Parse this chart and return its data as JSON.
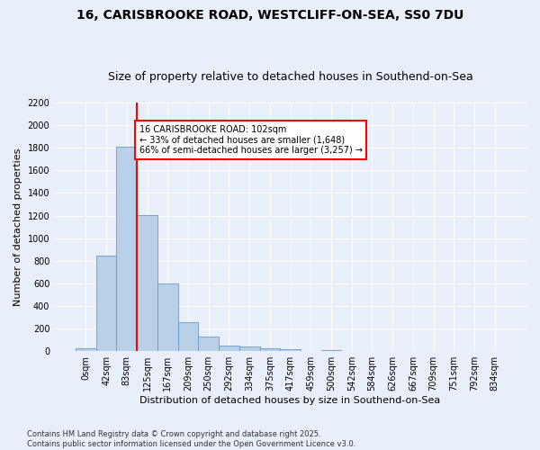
{
  "title1": "16, CARISBROOKE ROAD, WESTCLIFF-ON-SEA, SS0 7DU",
  "title2": "Size of property relative to detached houses in Southend-on-Sea",
  "xlabel": "Distribution of detached houses by size in Southend-on-Sea",
  "ylabel": "Number of detached properties",
  "categories": [
    "0sqm",
    "42sqm",
    "83sqm",
    "125sqm",
    "167sqm",
    "209sqm",
    "250sqm",
    "292sqm",
    "334sqm",
    "375sqm",
    "417sqm",
    "459sqm",
    "500sqm",
    "542sqm",
    "584sqm",
    "626sqm",
    "667sqm",
    "709sqm",
    "751sqm",
    "792sqm",
    "834sqm"
  ],
  "values": [
    25,
    845,
    1810,
    1205,
    600,
    255,
    130,
    50,
    38,
    28,
    18,
    0,
    12,
    0,
    0,
    0,
    0,
    0,
    0,
    0,
    0
  ],
  "bar_color": "#b8d0e8",
  "bar_edge_color": "#6699cc",
  "vline_x": 2.5,
  "vline_color": "red",
  "annotation_text": "16 CARISBROOKE ROAD: 102sqm\n← 33% of detached houses are smaller (1,648)\n66% of semi-detached houses are larger (3,257) →",
  "annotation_box_color": "white",
  "annotation_box_edgecolor": "red",
  "ylim": [
    0,
    2200
  ],
  "yticks": [
    0,
    200,
    400,
    600,
    800,
    1000,
    1200,
    1400,
    1600,
    1800,
    2000,
    2200
  ],
  "footnote": "Contains HM Land Registry data © Crown copyright and database right 2025.\nContains public sector information licensed under the Open Government Licence v3.0.",
  "bg_color": "#e8eff8",
  "grid_color": "white",
  "title_fontsize": 10,
  "subtitle_fontsize": 9,
  "axis_label_fontsize": 8,
  "tick_fontsize": 7,
  "annot_fontsize": 7,
  "footnote_fontsize": 6
}
